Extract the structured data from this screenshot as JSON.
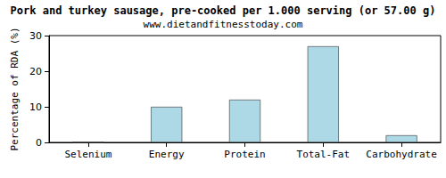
{
  "chart_data": {
    "type": "bar",
    "title": "Pork and turkey sausage, pre-cooked per 1.000 serving (or 57.00 g)",
    "subtitle": "www.dietandfitnesstoday.com",
    "ylabel": "Percentage of RDA (%)",
    "categories": [
      "Selenium",
      "Energy",
      "Protein",
      "Total-Fat",
      "Carbohydrate"
    ],
    "values": [
      0,
      10,
      12,
      27,
      2
    ],
    "color": "#add8e6",
    "ylim": [
      0,
      30
    ],
    "yticks": [
      0,
      10,
      20,
      30
    ],
    "grid": false
  }
}
